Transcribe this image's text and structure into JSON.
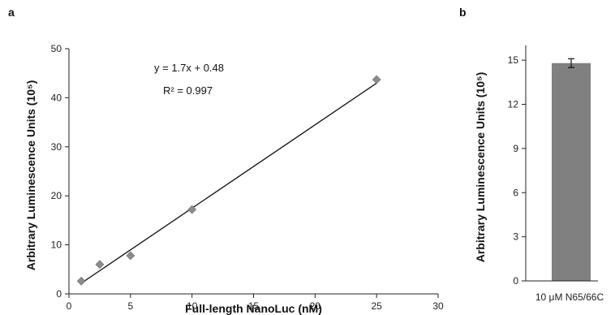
{
  "chart_data": [
    {
      "panel": "a",
      "type": "scatter",
      "xlabel": "Full-length NanoLuc (nM)",
      "ylabel": "Arbitrary Luminescence Units (10⁵)",
      "xlim": [
        0,
        30
      ],
      "ylim": [
        0,
        50
      ],
      "xticks": [
        0,
        5,
        10,
        15,
        20,
        25,
        30
      ],
      "yticks": [
        0,
        10,
        20,
        30,
        40,
        50
      ],
      "series": [
        {
          "x": [
            1,
            2.5,
            5,
            10,
            25
          ],
          "y": [
            2.6,
            6.0,
            7.8,
            17.2,
            43.7
          ],
          "marker": "diamond",
          "color": "#8c8c8c"
        }
      ],
      "trendline": {
        "slope": 1.7,
        "intercept": 0.48,
        "x_from": 1,
        "x_to": 25,
        "color": "#111111"
      },
      "annotations": [
        "y = 1.7x + 0.48",
        "R² = 0.997"
      ],
      "grid": false
    },
    {
      "panel": "b",
      "type": "bar",
      "categories": [
        "10 μM N65/66C"
      ],
      "values": [
        14.8
      ],
      "errors": [
        0.3
      ],
      "ylabel": "Arbitrary Luminescence Units (10⁵)",
      "ylim": [
        0,
        16
      ],
      "yticks": [
        0,
        3,
        6,
        9,
        12,
        15
      ],
      "bar_color": "#808080",
      "grid": false
    }
  ]
}
